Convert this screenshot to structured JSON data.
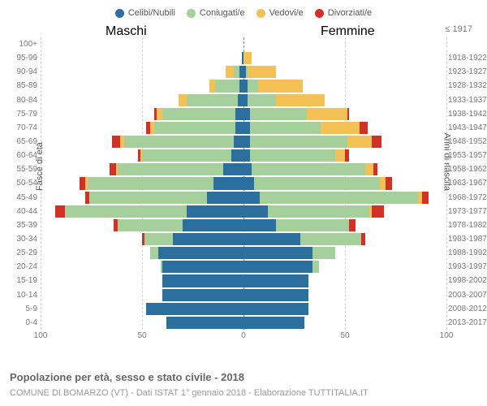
{
  "legend": [
    {
      "label": "Celibi/Nubili",
      "color": "#2b6f9e"
    },
    {
      "label": "Coniugati/e",
      "color": "#a5d09b"
    },
    {
      "label": "Vedovi/e",
      "color": "#f3c155"
    },
    {
      "label": "Divorziati/e",
      "color": "#d33126"
    }
  ],
  "header_male": "Maschi",
  "header_female": "Femmine",
  "first_right_label": "≤ 1917",
  "ylabel_left": "Fasce di età",
  "ylabel_right": "Anni di nascita",
  "title": "Popolazione per età, sesso e stato civile - 2018",
  "subtitle": "COMUNE DI BOMARZO (VT) - Dati ISTAT 1° gennaio 2018 - Elaborazione TUTTITALIA.IT",
  "xticks": [
    100,
    50,
    0,
    50,
    100
  ],
  "xmax": 100,
  "grid_color": "#d0d0d0",
  "background_color": "#ffffff",
  "label_fontsize": 10,
  "segment_order": [
    "celibi",
    "coniugati",
    "vedovi",
    "divorziati"
  ],
  "segment_colors": {
    "celibi": "#2b6f9e",
    "coniugati": "#a5d09b",
    "vedovi": "#f3c155",
    "divorziati": "#d33126"
  },
  "rows": [
    {
      "age": "100+",
      "years": "≤ 1917",
      "m": {
        "celibi": 0,
        "coniugati": 0,
        "vedovi": 0,
        "divorziati": 0
      },
      "f": {
        "celibi": 0,
        "coniugati": 0,
        "vedovi": 0,
        "divorziati": 0
      }
    },
    {
      "age": "95-99",
      "years": "1918-1922",
      "m": {
        "celibi": 1,
        "coniugati": 0,
        "vedovi": 0,
        "divorziati": 0
      },
      "f": {
        "celibi": 0,
        "coniugati": 0,
        "vedovi": 4,
        "divorziati": 0
      }
    },
    {
      "age": "90-94",
      "years": "1923-1927",
      "m": {
        "celibi": 2,
        "coniugati": 3,
        "vedovi": 4,
        "divorziati": 0
      },
      "f": {
        "celibi": 1,
        "coniugati": 1,
        "vedovi": 14,
        "divorziati": 0
      }
    },
    {
      "age": "85-89",
      "years": "1928-1932",
      "m": {
        "celibi": 2,
        "coniugati": 12,
        "vedovi": 3,
        "divorziati": 0
      },
      "f": {
        "celibi": 2,
        "coniugati": 5,
        "vedovi": 22,
        "divorziati": 0
      }
    },
    {
      "age": "80-84",
      "years": "1933-1937",
      "m": {
        "celibi": 3,
        "coniugati": 25,
        "vedovi": 4,
        "divorziati": 0
      },
      "f": {
        "celibi": 2,
        "coniugati": 14,
        "vedovi": 24,
        "divorziati": 0
      }
    },
    {
      "age": "75-79",
      "years": "1938-1942",
      "m": {
        "celibi": 4,
        "coniugati": 36,
        "vedovi": 3,
        "divorziati": 1
      },
      "f": {
        "celibi": 3,
        "coniugati": 28,
        "vedovi": 20,
        "divorziati": 1
      }
    },
    {
      "age": "70-74",
      "years": "1943-1947",
      "m": {
        "celibi": 4,
        "coniugati": 40,
        "vedovi": 2,
        "divorziati": 2
      },
      "f": {
        "celibi": 3,
        "coniugati": 35,
        "vedovi": 19,
        "divorziati": 4
      }
    },
    {
      "age": "65-69",
      "years": "1948-1952",
      "m": {
        "celibi": 5,
        "coniugati": 54,
        "vedovi": 2,
        "divorziati": 4
      },
      "f": {
        "celibi": 3,
        "coniugati": 48,
        "vedovi": 12,
        "divorziati": 5
      }
    },
    {
      "age": "60-64",
      "years": "1953-1957",
      "m": {
        "celibi": 6,
        "coniugati": 44,
        "vedovi": 1,
        "divorziati": 1
      },
      "f": {
        "celibi": 3,
        "coniugati": 42,
        "vedovi": 5,
        "divorziati": 2
      }
    },
    {
      "age": "55-59",
      "years": "1958-1962",
      "m": {
        "celibi": 10,
        "coniugati": 52,
        "vedovi": 1,
        "divorziati": 3
      },
      "f": {
        "celibi": 4,
        "coniugati": 56,
        "vedovi": 4,
        "divorziati": 2
      }
    },
    {
      "age": "50-54",
      "years": "1963-1967",
      "m": {
        "celibi": 15,
        "coniugati": 62,
        "vedovi": 1,
        "divorziati": 3
      },
      "f": {
        "celibi": 5,
        "coniugati": 62,
        "vedovi": 3,
        "divorziati": 3
      }
    },
    {
      "age": "45-49",
      "years": "1968-1972",
      "m": {
        "celibi": 18,
        "coniugati": 58,
        "vedovi": 0,
        "divorziati": 2
      },
      "f": {
        "celibi": 8,
        "coniugati": 78,
        "vedovi": 2,
        "divorziati": 3
      }
    },
    {
      "age": "40-44",
      "years": "1973-1977",
      "m": {
        "celibi": 28,
        "coniugati": 60,
        "vedovi": 0,
        "divorziati": 5
      },
      "f": {
        "celibi": 12,
        "coniugati": 50,
        "vedovi": 1,
        "divorziati": 6
      }
    },
    {
      "age": "35-39",
      "years": "1978-1982",
      "m": {
        "celibi": 30,
        "coniugati": 32,
        "vedovi": 0,
        "divorziati": 2
      },
      "f": {
        "celibi": 16,
        "coniugati": 36,
        "vedovi": 0,
        "divorziati": 3
      }
    },
    {
      "age": "30-34",
      "years": "1983-1987",
      "m": {
        "celibi": 35,
        "coniugati": 14,
        "vedovi": 0,
        "divorziati": 1
      },
      "f": {
        "celibi": 28,
        "coniugati": 30,
        "vedovi": 0,
        "divorziati": 2
      }
    },
    {
      "age": "25-29",
      "years": "1988-1992",
      "m": {
        "celibi": 42,
        "coniugati": 4,
        "vedovi": 0,
        "divorziati": 0
      },
      "f": {
        "celibi": 34,
        "coniugati": 11,
        "vedovi": 0,
        "divorziati": 0
      }
    },
    {
      "age": "20-24",
      "years": "1993-1997",
      "m": {
        "celibi": 40,
        "coniugati": 1,
        "vedovi": 0,
        "divorziati": 0
      },
      "f": {
        "celibi": 34,
        "coniugati": 3,
        "vedovi": 0,
        "divorziati": 0
      }
    },
    {
      "age": "15-19",
      "years": "1998-2002",
      "m": {
        "celibi": 40,
        "coniugati": 0,
        "vedovi": 0,
        "divorziati": 0
      },
      "f": {
        "celibi": 32,
        "coniugati": 0,
        "vedovi": 0,
        "divorziati": 0
      }
    },
    {
      "age": "10-14",
      "years": "2003-2007",
      "m": {
        "celibi": 40,
        "coniugati": 0,
        "vedovi": 0,
        "divorziati": 0
      },
      "f": {
        "celibi": 32,
        "coniugati": 0,
        "vedovi": 0,
        "divorziati": 0
      }
    },
    {
      "age": "5-9",
      "years": "2008-2012",
      "m": {
        "celibi": 48,
        "coniugati": 0,
        "vedovi": 0,
        "divorziati": 0
      },
      "f": {
        "celibi": 32,
        "coniugati": 0,
        "vedovi": 0,
        "divorziati": 0
      }
    },
    {
      "age": "0-4",
      "years": "2013-2017",
      "m": {
        "celibi": 38,
        "coniugati": 0,
        "vedovi": 0,
        "divorziati": 0
      },
      "f": {
        "celibi": 30,
        "coniugati": 0,
        "vedovi": 0,
        "divorziati": 0
      }
    }
  ]
}
